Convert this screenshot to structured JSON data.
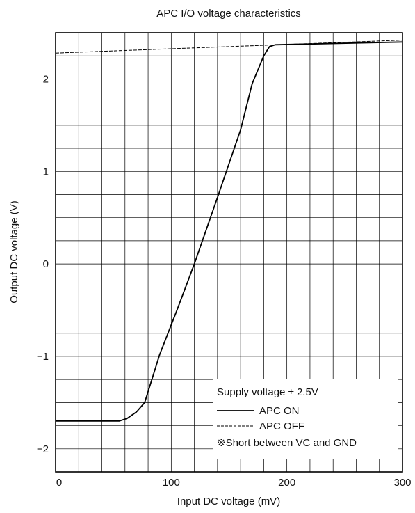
{
  "chart_data": {
    "type": "line",
    "title": "APC I/O voltage characteristics",
    "xlabel": "Input DC voltage (mV)",
    "ylabel": "Output DC voltage (V)",
    "xlim": [
      0,
      300
    ],
    "ylim": [
      -2.25,
      2.5
    ],
    "x_ticks": [
      "0",
      "100",
      "200",
      "300"
    ],
    "y_ticks": [
      "−2",
      "−1",
      "0",
      "1",
      "2"
    ],
    "x_tick_values": [
      0,
      100,
      200,
      300
    ],
    "y_tick_values": [
      -2,
      -1,
      0,
      1,
      2
    ],
    "grid": true,
    "legend_position": "bottom-right",
    "legend_title": "Supply voltage ± 2.5V",
    "note": "※Short between VC and GND",
    "series": [
      {
        "name": "APC ON",
        "style": "solid",
        "x": [
          0,
          55,
          62,
          70,
          77,
          90,
          105,
          120,
          140,
          160,
          170,
          180,
          185,
          190,
          300
        ],
        "y": [
          -1.7,
          -1.7,
          -1.67,
          -1.6,
          -1.5,
          -0.98,
          -0.5,
          0.0,
          0.72,
          1.45,
          1.95,
          2.25,
          2.35,
          2.37,
          2.4
        ]
      },
      {
        "name": "APC OFF",
        "style": "dashed",
        "x": [
          0,
          300
        ],
        "y": [
          2.28,
          2.42
        ]
      }
    ]
  }
}
